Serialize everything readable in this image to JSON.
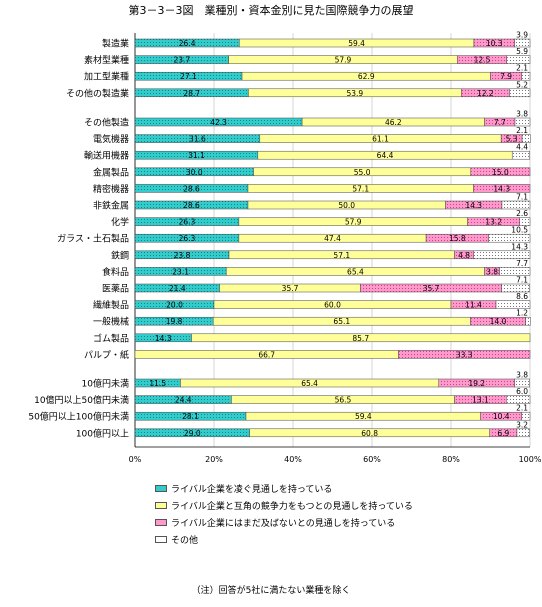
{
  "title": "第3－3－3図　業種別・資本金別に見た国際競争力の展望",
  "note": "（注）回答が5社に満たない業種を除く",
  "chart_data": {
    "type": "bar",
    "orientation": "horizontal",
    "stacked": "percent",
    "xlim": [
      0,
      100
    ],
    "x_ticks": [
      "0%",
      "20%",
      "40%",
      "60%",
      "80%",
      "100%"
    ],
    "series": [
      {
        "name": "ライバル企業を凌ぐ見通しを持っている",
        "color": "#33cccc",
        "pattern": "dots"
      },
      {
        "name": "ライバル企業と互角の競争力をもつとの見通しを持っている",
        "color": "#ffff99",
        "pattern": "solid"
      },
      {
        "name": "ライバル企業にはまだ及ばないとの見通しを持っている",
        "color": "#ff99cc",
        "pattern": "dots"
      },
      {
        "name": "その他",
        "color": "#ffffff",
        "pattern": "dots"
      }
    ],
    "groups": [
      {
        "rows": [
          {
            "label": "製造業",
            "values": [
              26.4,
              59.4,
              10.3,
              3.9
            ]
          },
          {
            "label": "素材型業種",
            "values": [
              23.7,
              57.9,
              12.5,
              5.9
            ]
          },
          {
            "label": "加工型業種",
            "values": [
              27.1,
              62.9,
              7.9,
              2.1
            ]
          },
          {
            "label": "その他の製造業",
            "values": [
              28.7,
              53.9,
              12.2,
              5.2
            ]
          }
        ]
      },
      {
        "rows": [
          {
            "label": "その他製造",
            "values": [
              42.3,
              46.2,
              7.7,
              3.8
            ]
          },
          {
            "label": "電気機器",
            "values": [
              31.6,
              61.1,
              5.3,
              2.1
            ]
          },
          {
            "label": "輸送用機器",
            "values": [
              31.1,
              64.4,
              0,
              4.4
            ]
          },
          {
            "label": "金属製品",
            "values": [
              30.0,
              55.0,
              15.0,
              0
            ]
          },
          {
            "label": "精密機器",
            "values": [
              28.6,
              57.1,
              14.3,
              0
            ]
          },
          {
            "label": "非鉄金属",
            "values": [
              28.6,
              50.0,
              14.3,
              7.1
            ]
          },
          {
            "label": "化学",
            "values": [
              26.3,
              57.9,
              13.2,
              2.6
            ]
          },
          {
            "label": "ガラス・土石製品",
            "values": [
              26.3,
              47.4,
              15.8,
              10.5
            ]
          },
          {
            "label": "鉄鋼",
            "values": [
              23.8,
              57.1,
              4.8,
              14.3
            ]
          },
          {
            "label": "食料品",
            "values": [
              23.1,
              65.4,
              3.8,
              7.7
            ]
          },
          {
            "label": "医薬品",
            "values": [
              21.4,
              35.7,
              35.7,
              7.1
            ]
          },
          {
            "label": "繊維製品",
            "values": [
              20.0,
              60.0,
              11.4,
              8.6
            ]
          },
          {
            "label": "一般機械",
            "values": [
              19.8,
              65.1,
              14.0,
              1.2
            ]
          },
          {
            "label": "ゴム製品",
            "values": [
              14.3,
              85.7,
              0,
              0
            ]
          },
          {
            "label": "パルプ・紙",
            "values": [
              0,
              66.7,
              33.3,
              0
            ]
          }
        ]
      },
      {
        "rows": [
          {
            "label": "10億円未満",
            "values": [
              11.5,
              65.4,
              19.2,
              3.8
            ]
          },
          {
            "label": "10億円以上50億円未満",
            "values": [
              24.4,
              56.5,
              13.1,
              6.0
            ]
          },
          {
            "label": "50億円以上100億円未満",
            "values": [
              28.1,
              59.4,
              10.4,
              2.1
            ]
          },
          {
            "label": "100億円以上",
            "values": [
              29.0,
              60.8,
              6.9,
              3.2
            ]
          }
        ]
      }
    ],
    "data_labels": {
      "製造業": [
        "26.4",
        "59.4",
        "10.3",
        "3.9"
      ],
      "素材型業種": [
        "23.7",
        "57.9",
        "12.5",
        "5.9"
      ],
      "加工型業種": [
        "27.1",
        "62.9",
        "7.9",
        "2.1"
      ],
      "その他の製造業": [
        "28.7",
        "53.9",
        "12.2",
        "5.2"
      ],
      "その他製造": [
        "42.3",
        "46.2",
        "7.7",
        "3.8"
      ],
      "電気機器": [
        "31.6",
        "61.1",
        "5.3",
        "2.1"
      ],
      "輸送用機器": [
        "31.1",
        "64.4",
        "",
        "4.4"
      ],
      "金属製品": [
        "30.0",
        "55.0",
        "15.0",
        ""
      ],
      "精密機器": [
        "28.6",
        "57.1",
        "14.3",
        ""
      ],
      "非鉄金属": [
        "28.6",
        "50.0",
        "14.3",
        "7.1"
      ],
      "化学": [
        "26.3",
        "57.9",
        "13.2",
        "2.6"
      ],
      "ガラス・土石製品": [
        "26.3",
        "47.4",
        "15.8",
        "10.5"
      ],
      "鉄鋼": [
        "23.8",
        "57.1",
        "4.8",
        "14.3"
      ],
      "食料品": [
        "23.1",
        "65.4",
        "3.8",
        "7.7"
      ],
      "医薬品": [
        "21.4",
        "35.7",
        "35.7",
        "7.1"
      ],
      "繊維製品": [
        "20.0",
        "60.0",
        "11.4",
        "8.6"
      ],
      "一般機械": [
        "19.8",
        "65.1",
        "14.0",
        "1.2"
      ],
      "ゴム製品": [
        "14.3",
        "85.7",
        "",
        ""
      ],
      "パルプ・紙": [
        "",
        "66.7",
        "33.3",
        ""
      ],
      "10億円未満": [
        "11.5",
        "65.4",
        "19.2",
        "3.8"
      ],
      "10億円以上50億円未満": [
        "24.4",
        "56.5",
        "13.1",
        "6.0"
      ],
      "50億円以上100億円未満": [
        "28.1",
        "59.4",
        "10.4",
        "2.1"
      ],
      "100億円以上": [
        "29.0",
        "60.8",
        "6.9",
        "3.2"
      ]
    }
  }
}
